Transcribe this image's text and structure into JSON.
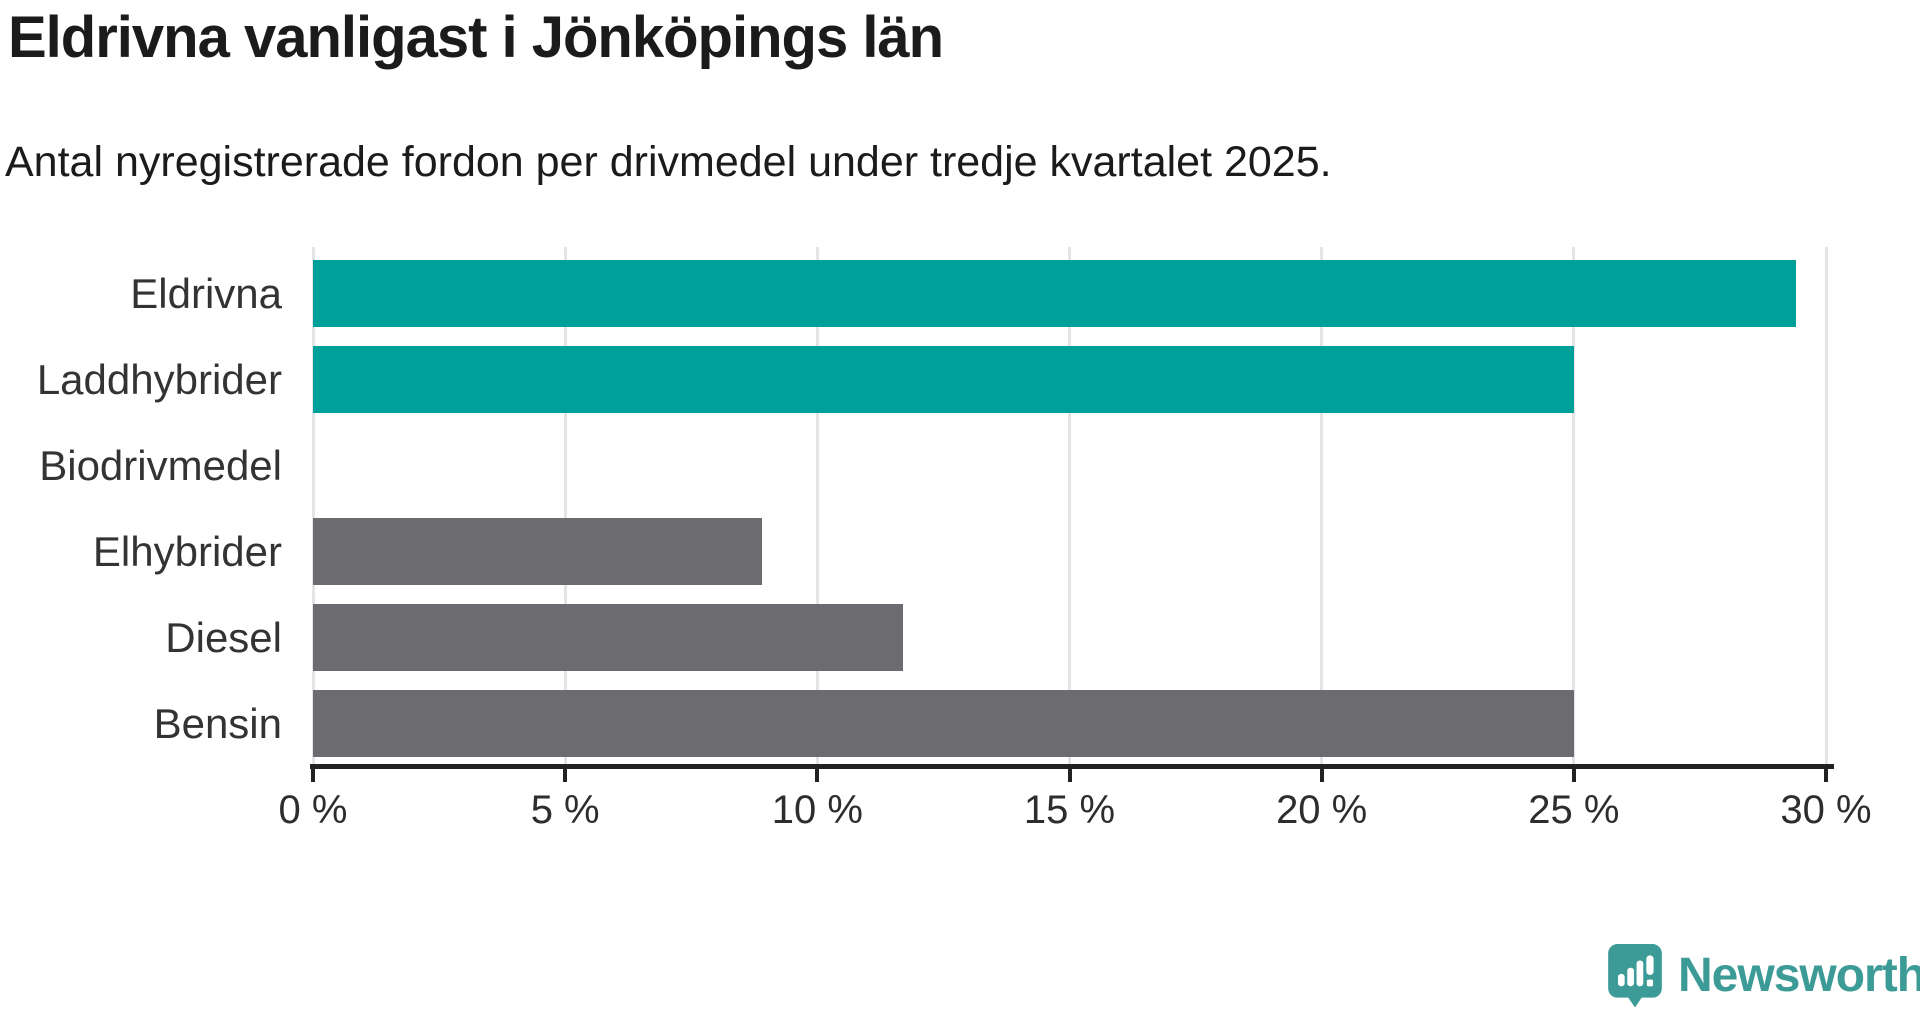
{
  "header": {
    "title": "Eldrivna vanligast i Jönköpings län",
    "subtitle": "Antal nyregistrerade fordon per drivmedel under tredje kvartalet 2025."
  },
  "chart_data": {
    "type": "bar",
    "orientation": "horizontal",
    "title": "Eldrivna vanligast i Jönköpings län",
    "subtitle": "Antal nyregistrerade fordon per drivmedel under tredje kvartalet 2025.",
    "categories": [
      "Eldrivna",
      "Laddhybrider",
      "Biodrivmedel",
      "Elhybrider",
      "Diesel",
      "Bensin"
    ],
    "values": [
      29.4,
      25.0,
      0,
      8.9,
      11.7,
      25.0
    ],
    "unit": "%",
    "xlim": [
      0,
      30
    ],
    "x_ticks": [
      0,
      5,
      10,
      15,
      20,
      25,
      30
    ],
    "x_tick_labels": [
      "0 %",
      "5 %",
      "10 %",
      "15 %",
      "20 %",
      "25 %",
      "30 %"
    ],
    "bar_colors": [
      "#00a09a",
      "#00a09a",
      "#00a09a",
      "#6b6b70",
      "#6b6b70",
      "#6b6b70"
    ],
    "grid": "vertical-only",
    "legend": "none",
    "ylabel": "",
    "xlabel": ""
  },
  "colors": {
    "accent_teal": "#00a09a",
    "neutral_gray": "#6b6b70",
    "gridline": "#e4e4e4",
    "axis": "#222222",
    "text_dark": "#1b1b1b",
    "brand_teal": "#3c9b96",
    "background": "#ffffff"
  },
  "footer": {
    "brand_name": "Newsworthy"
  },
  "icons": {
    "brand_icon": "speech-bubble-bar-chart-exclamation"
  }
}
